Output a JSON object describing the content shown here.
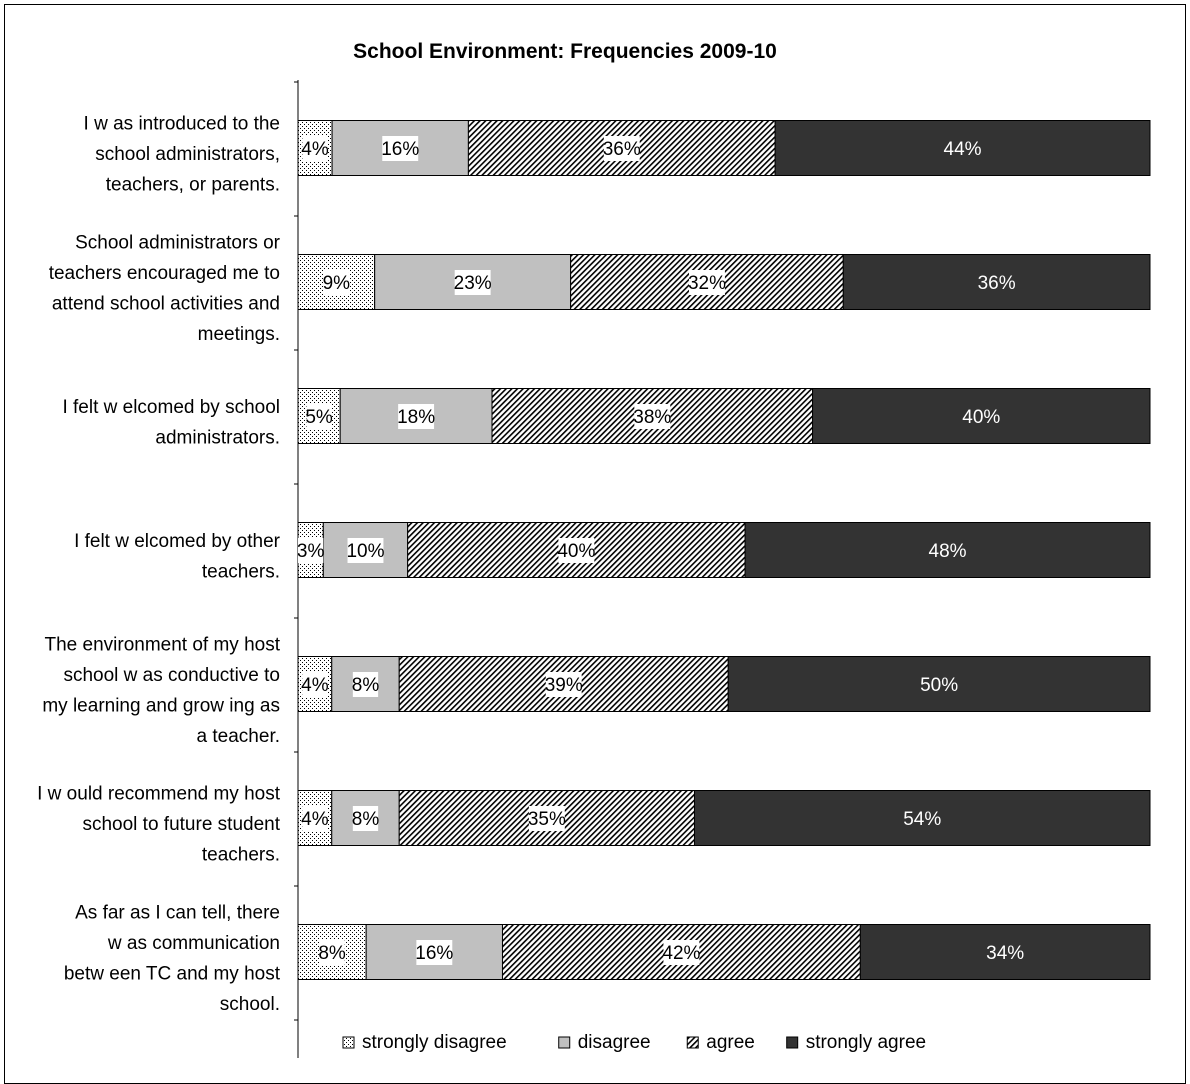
{
  "chart_data": {
    "type": "bar",
    "orientation": "horizontal",
    "stacked": true,
    "percent_stacked": true,
    "title": "School Environment: Frequencies 2009-10",
    "xlabel": "",
    "ylabel": "",
    "xlim": [
      0,
      100
    ],
    "grid": false,
    "legend_position": "bottom",
    "categories": [
      "I w as introduced to the school administrators, teachers, or parents.",
      "School administrators or teachers encouraged me to attend school activities and meetings.",
      "I felt w elcomed by school administrators.",
      "I felt w elcomed by other teachers.",
      "The environment of my host school w as conductive to my learning and grow ing as a teacher.",
      "I w ould recommend my host school to future student teachers.",
      "As far as I can tell, there w as communication betw een TC and my host school."
    ],
    "category_lines": [
      [
        "I w as introduced to the",
        "school administrators,",
        "teachers, or parents."
      ],
      [
        "School administrators or",
        "teachers encouraged me to",
        "attend school activities and",
        "meetings."
      ],
      [
        "I felt w elcomed by school",
        "administrators."
      ],
      [
        "I felt w elcomed by other",
        "teachers."
      ],
      [
        "The environment of my host",
        "school w as conductive to",
        "my learning and grow ing as",
        "a teacher."
      ],
      [
        "I w ould recommend my host",
        "school to future student",
        "teachers."
      ],
      [
        "As far as I can tell, there",
        "w as communication",
        "betw een TC and my host",
        "school."
      ]
    ],
    "series": [
      {
        "name": "strongly disagree",
        "pattern": "dots",
        "values": [
          4,
          9,
          5,
          3,
          4,
          4,
          8
        ],
        "labels": [
          "4%",
          "9%",
          "5%",
          "3%",
          "4%",
          "4%",
          "8%"
        ]
      },
      {
        "name": "disagree",
        "color": "#c0c0c0",
        "values": [
          16,
          23,
          18,
          10,
          8,
          8,
          16
        ],
        "labels": [
          "16%",
          "23%",
          "18%",
          "10%",
          "8%",
          "8%",
          "16%"
        ]
      },
      {
        "name": "agree",
        "pattern": "diagonal-hatch",
        "values": [
          36,
          32,
          38,
          40,
          39,
          35,
          42
        ],
        "labels": [
          "36%",
          "32%",
          "38%",
          "40%",
          "39%",
          "35%",
          "42%"
        ]
      },
      {
        "name": "strongly agree",
        "color": "#333333",
        "values": [
          44,
          36,
          40,
          48,
          50,
          54,
          34
        ],
        "labels": [
          "44%",
          "36%",
          "40%",
          "48%",
          "50%",
          "54%",
          "34%"
        ]
      }
    ]
  }
}
